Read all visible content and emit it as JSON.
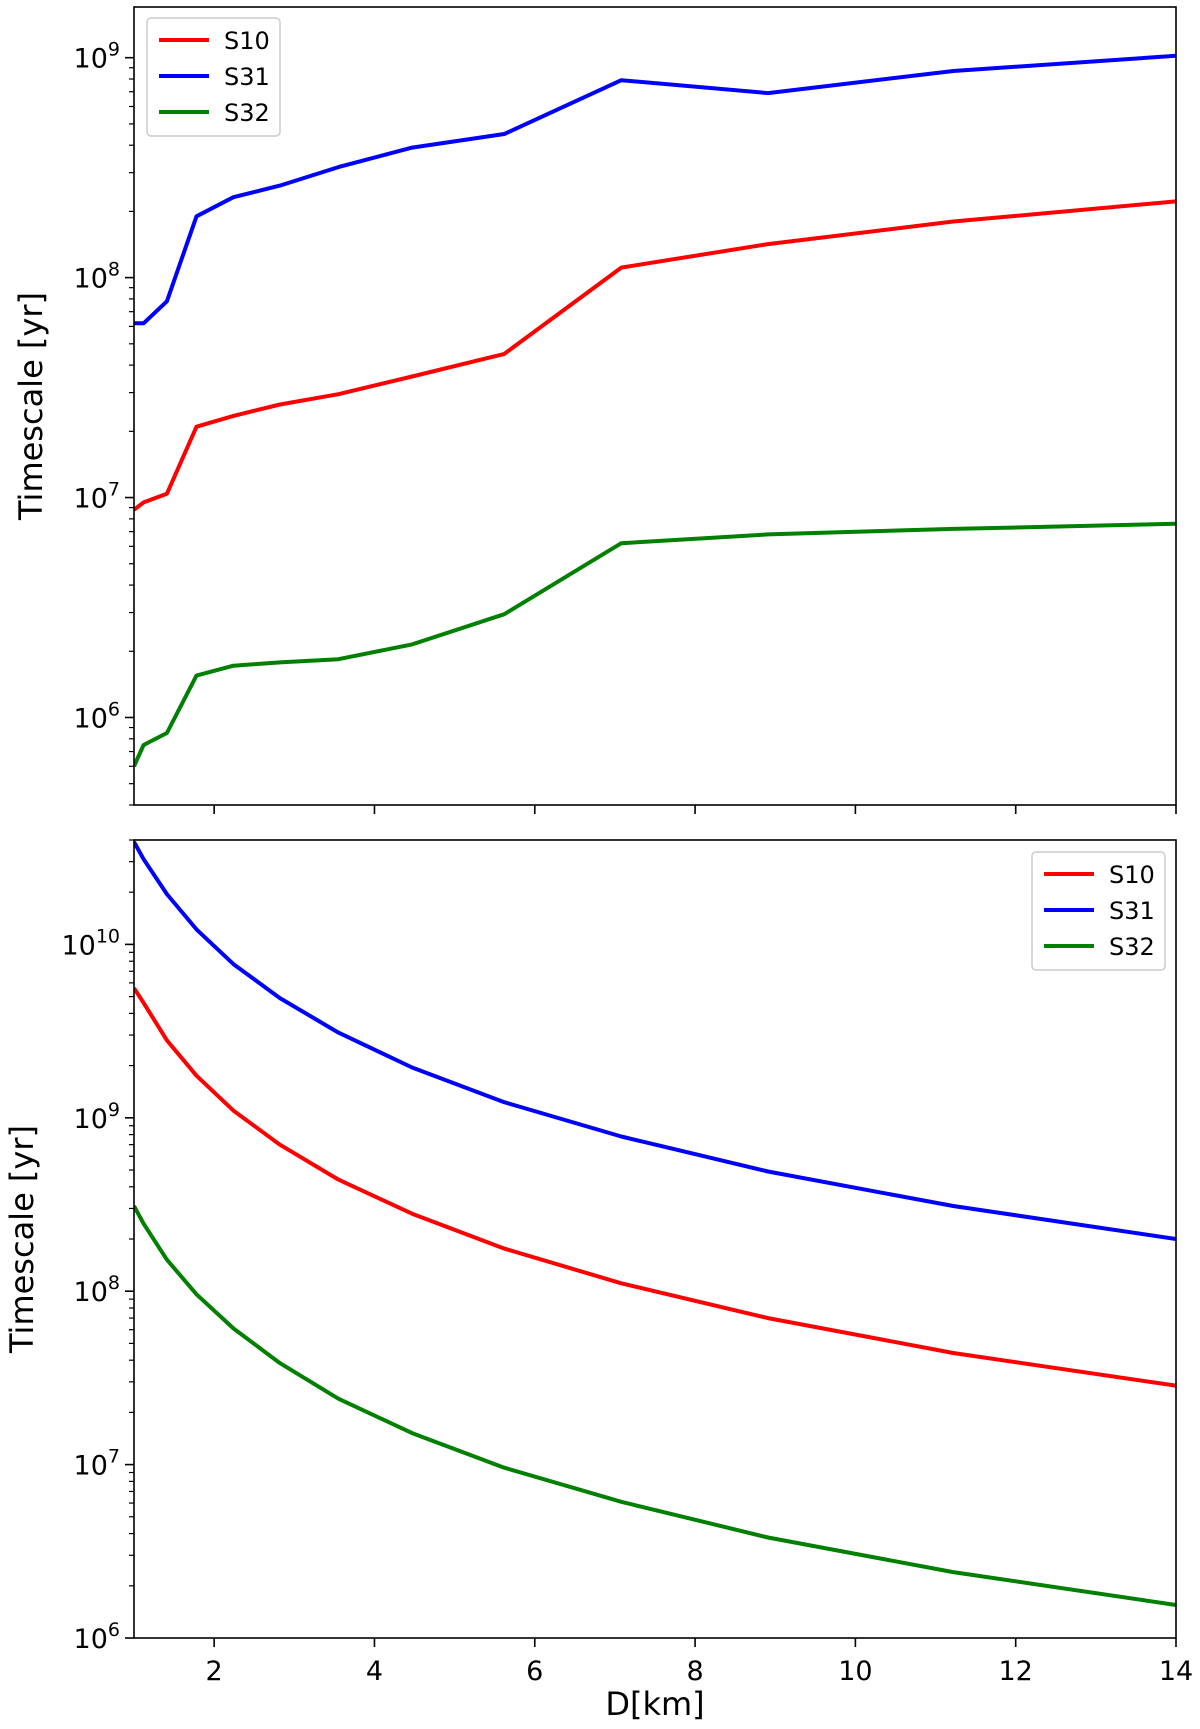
{
  "chart_data": [
    {
      "type": "line",
      "title": "",
      "xlabel": "",
      "ylabel": "Timescale [yr]",
      "yscale": "log",
      "xlim": [
        1,
        14
      ],
      "ylim": [
        400000,
        1700000000
      ],
      "x_ticks": [
        2,
        4,
        6,
        8,
        10,
        12,
        14
      ],
      "x_tick_labels_shown": false,
      "y_ticks": [
        {
          "value": 1000000,
          "base": "10",
          "exp": "6"
        },
        {
          "value": 10000000,
          "base": "10",
          "exp": "7"
        },
        {
          "value": 100000000,
          "base": "10",
          "exp": "8"
        },
        {
          "value": 1000000000,
          "base": "10",
          "exp": "9"
        }
      ],
      "legend_position": "top-left",
      "grid": false,
      "x": [
        1.0,
        1.12,
        1.41,
        1.78,
        2.24,
        2.82,
        3.55,
        4.47,
        5.62,
        7.08,
        8.91,
        11.22,
        14.0
      ],
      "series": [
        {
          "name": "S10",
          "color": "#ff0000",
          "values": [
            8800000,
            9500000,
            10400000,
            21000000,
            23500000,
            26500000,
            29500000,
            35500000,
            45000000,
            111000000,
            142000000,
            180000000,
            222000000
          ]
        },
        {
          "name": "S31",
          "color": "#0000ff",
          "values": [
            62000000,
            62000000,
            78000000,
            190000000,
            232000000,
            262000000,
            318000000,
            390000000,
            450000000,
            790000000,
            690000000,
            870000000,
            1020000000
          ]
        },
        {
          "name": "S32",
          "color": "#008000",
          "values": [
            600000,
            750000,
            850000,
            1550000,
            1720000,
            1780000,
            1840000,
            2150000,
            2950000,
            6200000,
            6800000,
            7200000,
            7600000
          ]
        }
      ]
    },
    {
      "type": "line",
      "title": "",
      "xlabel": "D[km]",
      "ylabel": "Timescale [yr]",
      "yscale": "log",
      "xlim": [
        1,
        14
      ],
      "ylim": [
        1000000,
        40000000000
      ],
      "x_ticks": [
        2,
        4,
        6,
        8,
        10,
        12,
        14
      ],
      "x_tick_labels": [
        "2",
        "4",
        "6",
        "8",
        "10",
        "12",
        "14"
      ],
      "y_ticks": [
        {
          "value": 1000000,
          "base": "10",
          "exp": "6"
        },
        {
          "value": 10000000,
          "base": "10",
          "exp": "7"
        },
        {
          "value": 100000000,
          "base": "10",
          "exp": "8"
        },
        {
          "value": 1000000000,
          "base": "10",
          "exp": "9"
        },
        {
          "value": 10000000000,
          "base": "10",
          "exp": "10"
        }
      ],
      "legend_position": "top-right",
      "grid": false,
      "x": [
        1.0,
        1.12,
        1.41,
        1.78,
        2.24,
        2.82,
        3.55,
        4.47,
        5.62,
        7.08,
        8.91,
        11.22,
        14.0
      ],
      "series": [
        {
          "name": "S10",
          "color": "#ff0000",
          "values": [
            5600000000,
            4600000000,
            2800000000,
            1750000000,
            1100000000,
            700000000,
            440000000,
            280000000,
            176000000,
            111000000,
            70000000,
            44000000,
            28500000
          ]
        },
        {
          "name": "S31",
          "color": "#0000ff",
          "values": [
            39000000000,
            31000000000,
            19500000000,
            12200000000,
            7700000000,
            4900000000,
            3100000000,
            1950000000,
            1230000000,
            780000000,
            490000000,
            310000000,
            200000000
          ]
        },
        {
          "name": "S32",
          "color": "#008000",
          "values": [
            310000000,
            245000000,
            152000000,
            96000000,
            61000000,
            38500000,
            24000000,
            15200000,
            9600000,
            6100000,
            3800000,
            2400000,
            1550000
          ]
        }
      ]
    }
  ]
}
